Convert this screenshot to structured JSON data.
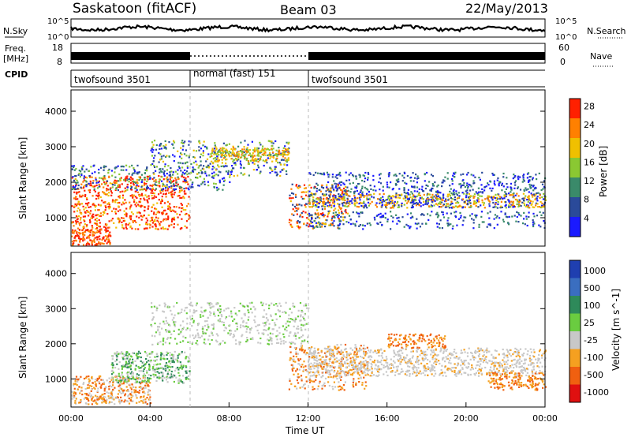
{
  "header": {
    "station": "Saskatoon (fitACF)",
    "beam": "Beam 03",
    "date": "22/May/2013"
  },
  "left_labels": {
    "nsky": "N.Sky",
    "freq_line1": "Freq.",
    "freq_line2": "[MHz]",
    "cpid": "CPID"
  },
  "right_labels": {
    "nsearch": "N.Search",
    "nave": "Nave"
  },
  "nsky_axis": {
    "left_ticks": [
      "10^5",
      "10^0"
    ],
    "right_ticks": [
      "10^5",
      "10^0"
    ]
  },
  "freq_axis": {
    "left_ticks": [
      "18",
      "8"
    ],
    "right_ticks": [
      "60",
      "0"
    ]
  },
  "cpid_segments": [
    {
      "label": "twofsound 3501",
      "start_hour": 0,
      "end_hour": 6
    },
    {
      "label": "normal (fast) 151",
      "start_hour": 6,
      "end_hour": 12
    },
    {
      "label": "twofsound 3501",
      "start_hour": 12,
      "end_hour": 24
    }
  ],
  "chart_data": [
    {
      "type": "heatmap",
      "name": "power",
      "ylabel": "Slant Range [km]",
      "ylim": [
        200,
        4600
      ],
      "yticks": [
        "1000",
        "2000",
        "3000",
        "4000"
      ],
      "colorbar": {
        "label": "Power [dB]",
        "ticks": [
          "4",
          "8",
          "12",
          "16",
          "20",
          "24",
          "28"
        ],
        "colors": [
          "#1a1aff",
          "#2a4a9a",
          "#3a8a6a",
          "#8ac832",
          "#f0c000",
          "#ff8000",
          "#ff2000"
        ]
      }
    },
    {
      "type": "heatmap",
      "name": "velocity",
      "ylabel": "Slant Range [km]",
      "xlabel": "Time UT",
      "ylim": [
        200,
        4600
      ],
      "yticks": [
        "1000",
        "2000",
        "3000",
        "4000"
      ],
      "xticks": [
        "00:00",
        "04:00",
        "08:00",
        "12:00",
        "16:00",
        "20:00",
        "00:00"
      ],
      "colorbar": {
        "label": "Velocity [m s^-1]",
        "ticks": [
          "1000",
          "500",
          "100",
          "25",
          "-25",
          "-100",
          "-500",
          "-1000"
        ],
        "colors": [
          "#1f3fb0",
          "#3a6ec0",
          "#2e8a5a",
          "#6acc40",
          "#c8c8c8",
          "#f5a020",
          "#f06010",
          "#e01010"
        ]
      }
    }
  ]
}
